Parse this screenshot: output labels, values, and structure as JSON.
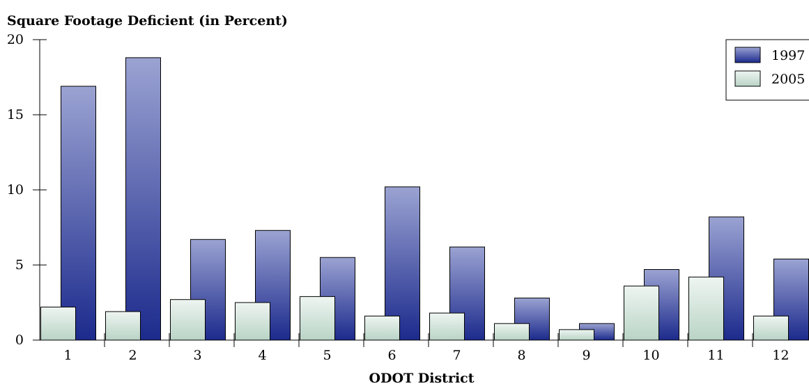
{
  "chart_data": {
    "type": "bar",
    "title": "Square Footage Deficient (in Percent)",
    "xlabel": "ODOT District",
    "ylabel": "",
    "ylim": [
      0,
      20
    ],
    "yticks": [
      0,
      5,
      10,
      15,
      20
    ],
    "categories": [
      "1",
      "2",
      "3",
      "4",
      "5",
      "6",
      "7",
      "8",
      "9",
      "10",
      "11",
      "12"
    ],
    "series": [
      {
        "name": "1997",
        "values": [
          16.9,
          18.8,
          6.7,
          7.3,
          5.5,
          10.2,
          6.2,
          2.8,
          1.1,
          4.7,
          8.2,
          5.4
        ],
        "color_top": "#9ba3d2",
        "color_bottom": "#1c2a8c"
      },
      {
        "name": "2005",
        "values": [
          2.2,
          1.9,
          2.7,
          2.5,
          2.9,
          1.6,
          1.8,
          1.1,
          0.7,
          3.6,
          4.2,
          1.6
        ],
        "color_top": "#eef5f1",
        "color_bottom": "#b9d4c6"
      }
    ],
    "legend_position": "top-right",
    "grid": false
  }
}
